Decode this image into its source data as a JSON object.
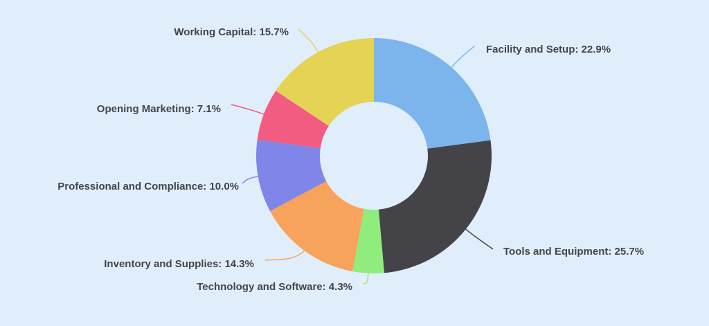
{
  "chart_data": {
    "type": "pie",
    "variant": "donut",
    "start_angle": "top, clockwise",
    "slices": [
      {
        "label": "Facility and Setup",
        "value": 22.9,
        "display": "Facility and Setup: 22.9%",
        "color": "#7cb5ec"
      },
      {
        "label": "Tools and Equipment",
        "value": 25.7,
        "display": "Tools and Equipment: 25.7%",
        "color": "#434348"
      },
      {
        "label": "Technology and Software",
        "value": 4.3,
        "display": "Technology and Software: 4.3%",
        "color": "#90ed7d"
      },
      {
        "label": "Inventory and Supplies",
        "value": 14.3,
        "display": "Inventory and Supplies: 14.3%",
        "color": "#f7a35c"
      },
      {
        "label": "Professional and Compliance",
        "value": 10.0,
        "display": "Professional and Compliance: 10.0%",
        "color": "#8085e9"
      },
      {
        "label": "Opening Marketing",
        "value": 7.1,
        "display": "Opening Marketing: 7.1%",
        "color": "#f15c80"
      },
      {
        "label": "Working Capital",
        "value": 15.7,
        "display": "Working Capital: 15.7%",
        "color": "#e4d354"
      }
    ],
    "background": "#e0eefc"
  }
}
